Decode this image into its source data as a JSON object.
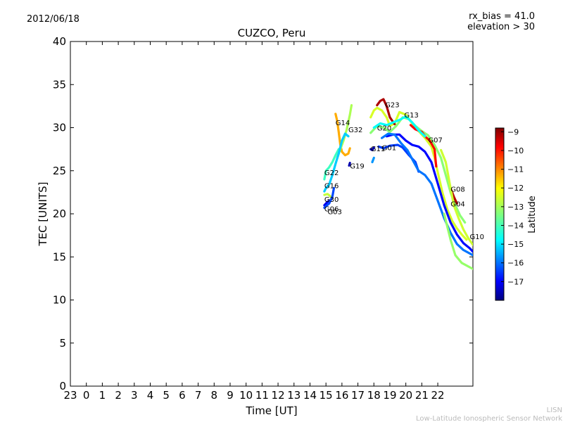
{
  "header": {
    "date": "2012/06/18",
    "bias_line": "rx_bias = 41.0",
    "elevation_line": "elevation > 30"
  },
  "footer": {
    "org": "LISN",
    "network": "Low-Latitude Ionospheric Sensor Network"
  },
  "colors": {
    "background": "#ffffff",
    "axis": "#000000",
    "footer": "#bbbbbb"
  },
  "chart_data": {
    "type": "line",
    "title": "CUZCO, Peru",
    "xlabel": "Time [UT]",
    "ylabel": "TEC [UNITS]",
    "xlim": [
      -1,
      24.2
    ],
    "ylim": [
      0,
      40
    ],
    "x_ticks": [
      -1,
      0,
      1,
      2,
      3,
      4,
      5,
      6,
      7,
      8,
      9,
      10,
      11,
      12,
      13,
      14,
      15,
      16,
      17,
      18,
      19,
      20,
      21,
      22
    ],
    "x_tick_labels": [
      "23",
      "0",
      "1",
      "2",
      "3",
      "4",
      "5",
      "6",
      "7",
      "8",
      "9",
      "10",
      "11",
      "12",
      "13",
      "14",
      "15",
      "16",
      "17",
      "18",
      "19",
      "20",
      "21",
      "22"
    ],
    "y_ticks": [
      0,
      5,
      10,
      15,
      20,
      25,
      30,
      35,
      40
    ],
    "y_tick_labels": [
      "0",
      "5",
      "10",
      "15",
      "20",
      "25",
      "30",
      "35",
      "40"
    ],
    "grid": false,
    "colorbar": {
      "label": "Latitude",
      "min": -18,
      "max": -8.8,
      "ticks": [
        -9,
        -10,
        -11,
        -12,
        -13,
        -14,
        -15,
        -16,
        -17
      ],
      "tick_labels": [
        "−9",
        "−10",
        "−11",
        "−12",
        "−13",
        "−14",
        "−15",
        "−16",
        "−17"
      ],
      "colormap": "jet"
    },
    "series": [
      {
        "name": "G14",
        "lat": -11.5,
        "points": [
          [
            15.6,
            31.6
          ],
          [
            15.7,
            30.8
          ],
          [
            15.8,
            29.5
          ],
          [
            15.9,
            28.0
          ],
          [
            16.0,
            27.2
          ],
          [
            16.2,
            26.8
          ],
          [
            16.4,
            27.0
          ],
          [
            16.5,
            27.6
          ]
        ],
        "label_at": [
          15.6,
          30.6
        ]
      },
      {
        "name": "G32",
        "lat": -13.0,
        "points": [
          [
            15.7,
            26.5
          ],
          [
            15.9,
            27.5
          ],
          [
            16.1,
            28.5
          ],
          [
            16.3,
            29.8
          ],
          [
            16.5,
            31.5
          ],
          [
            16.6,
            32.6
          ]
        ],
        "label_at": [
          16.4,
          29.8
        ]
      },
      {
        "name": "G19",
        "lat": -17.6,
        "points": [
          [
            16.45,
            25.6
          ],
          [
            16.5,
            25.9
          ]
        ],
        "label_at": [
          16.5,
          25.6
        ]
      },
      {
        "name": "G22",
        "lat": -14.0,
        "points": [
          [
            14.9,
            24.0
          ],
          [
            15.0,
            25.0
          ],
          [
            15.2,
            25.4
          ],
          [
            15.4,
            26.0
          ],
          [
            15.6,
            26.8
          ],
          [
            15.8,
            27.5
          ]
        ],
        "label_at": [
          14.9,
          24.8
        ]
      },
      {
        "name": "G16",
        "lat": -15.0,
        "points": [
          [
            14.9,
            22.6
          ],
          [
            15.0,
            23.0
          ],
          [
            15.2,
            23.4
          ],
          [
            15.4,
            24.5
          ],
          [
            15.6,
            25.8
          ],
          [
            15.8,
            27.0
          ],
          [
            16.0,
            28.5
          ],
          [
            16.2,
            29.3
          ],
          [
            16.4,
            29.0
          ]
        ],
        "label_at": [
          14.9,
          23.3
        ]
      },
      {
        "name": "G30",
        "lat": -12.8,
        "points": [
          [
            14.9,
            22.2
          ],
          [
            15.1,
            22.3
          ],
          [
            15.3,
            22.0
          ]
        ],
        "label_at": [
          14.9,
          21.7
        ]
      },
      {
        "name": "G06",
        "lat": -17.0,
        "points": [
          [
            14.9,
            21.0
          ],
          [
            15.1,
            21.4
          ],
          [
            15.3,
            21.6
          ]
        ],
        "label_at": [
          14.9,
          20.6
        ]
      },
      {
        "name": "G03",
        "lat": -16.2,
        "points": [
          [
            14.9,
            20.7
          ],
          [
            15.0,
            20.9
          ],
          [
            15.2,
            21.2
          ],
          [
            15.4,
            22.0
          ],
          [
            15.5,
            23.0
          ]
        ],
        "label_at": [
          15.1,
          20.3
        ]
      },
      {
        "name": "G11",
        "lat": -17.5,
        "points": [
          [
            17.8,
            27.5
          ],
          [
            17.9,
            27.4
          ],
          [
            18.0,
            27.7
          ]
        ],
        "label_at": [
          17.8,
          27.6
        ]
      },
      {
        "name": "G01",
        "lat": -16.3,
        "points": [
          [
            18.3,
            27.8
          ],
          [
            18.6,
            27.6
          ],
          [
            19.0,
            27.9
          ],
          [
            19.5,
            28.0
          ],
          [
            19.8,
            27.7
          ],
          [
            20.2,
            26.8
          ],
          [
            20.6,
            26.0
          ],
          [
            20.8,
            24.9
          ]
        ],
        "label_at": [
          18.5,
          27.7
        ]
      },
      {
        "name": "G20",
        "lat": -12.6,
        "points": [
          [
            17.8,
            31.2
          ],
          [
            18.0,
            32.0
          ],
          [
            18.2,
            32.3
          ],
          [
            18.5,
            32.0
          ],
          [
            18.8,
            31.2
          ],
          [
            19.0,
            30.2
          ],
          [
            19.3,
            30.5
          ],
          [
            19.6,
            31.8
          ],
          [
            20.0,
            31.5
          ],
          [
            20.4,
            30.5
          ],
          [
            20.8,
            29.6
          ],
          [
            21.2,
            28.8
          ],
          [
            21.6,
            27.8
          ],
          [
            21.8,
            26.5
          ],
          [
            22.0,
            24.8
          ],
          [
            22.3,
            22.4
          ],
          [
            22.6,
            20.5
          ],
          [
            22.9,
            19.2
          ],
          [
            23.2,
            18.3
          ],
          [
            23.5,
            17.6
          ],
          [
            23.8,
            17.0
          ]
        ],
        "label_at": [
          18.2,
          30.0
        ]
      },
      {
        "name": "G23",
        "lat": -9.2,
        "points": [
          [
            18.2,
            32.6
          ],
          [
            18.4,
            33.1
          ],
          [
            18.6,
            33.3
          ],
          [
            18.8,
            32.5
          ],
          [
            19.0,
            31.2
          ],
          [
            19.3,
            30.4
          ]
        ],
        "label_at": [
          18.7,
          32.7
        ]
      },
      {
        "name": "G13",
        "lat": -13.3,
        "points": [
          [
            17.8,
            29.4
          ],
          [
            18.2,
            30.2
          ],
          [
            18.6,
            30.0
          ],
          [
            19.0,
            29.5
          ],
          [
            19.4,
            30.2
          ],
          [
            19.8,
            31.2
          ],
          [
            20.2,
            31.0
          ],
          [
            20.6,
            30.2
          ],
          [
            21.0,
            29.6
          ],
          [
            21.4,
            29.1
          ],
          [
            21.8,
            28.0
          ],
          [
            22.2,
            26.5
          ],
          [
            22.5,
            24.5
          ],
          [
            22.8,
            22.5
          ],
          [
            23.1,
            21.0
          ],
          [
            23.4,
            19.8
          ],
          [
            23.7,
            19.0
          ]
        ],
        "label_at": [
          19.9,
          31.5
        ]
      },
      {
        "name": "G07",
        "lat": -10.0,
        "points": [
          [
            20.3,
            30.3
          ],
          [
            20.6,
            29.8
          ],
          [
            21.0,
            29.5
          ],
          [
            21.2,
            29.0
          ],
          [
            21.5,
            28.5
          ],
          [
            21.8,
            27.5
          ],
          [
            21.9,
            25.5
          ]
        ],
        "label_at": [
          21.4,
          28.6
        ]
      },
      {
        "name": "G08",
        "lat": -9.3,
        "points": [
          [
            22.8,
            23.0
          ],
          [
            23.0,
            22.0
          ],
          [
            23.2,
            21.2
          ]
        ],
        "label_at": [
          22.8,
          22.9
        ]
      },
      {
        "name": "G04",
        "lat": -12.7,
        "points": [
          [
            22.2,
            27.4
          ],
          [
            22.5,
            26.0
          ],
          [
            22.8,
            23.0
          ],
          [
            23.0,
            21.0
          ],
          [
            23.3,
            19.5
          ],
          [
            23.6,
            18.2
          ],
          [
            23.9,
            17.2
          ],
          [
            24.2,
            16.4
          ]
        ],
        "label_at": [
          22.8,
          21.2
        ]
      },
      {
        "name": "G10",
        "lat": -16.8,
        "points": [
          [
            18.8,
            29.0
          ],
          [
            19.2,
            29.2
          ],
          [
            19.6,
            29.2
          ],
          [
            20.0,
            28.5
          ],
          [
            20.4,
            28.0
          ],
          [
            20.8,
            27.8
          ],
          [
            21.2,
            27.2
          ],
          [
            21.6,
            26.0
          ],
          [
            22.0,
            23.5
          ],
          [
            22.4,
            21.0
          ],
          [
            22.8,
            19.0
          ],
          [
            23.2,
            17.6
          ],
          [
            23.6,
            16.6
          ],
          [
            24.0,
            16.0
          ],
          [
            24.2,
            15.6
          ]
        ],
        "label_at": [
          24.0,
          17.4
        ]
      },
      {
        "name": "",
        "lat": -15.8,
        "points": [
          [
            18.5,
            28.8
          ],
          [
            18.9,
            29.3
          ],
          [
            19.3,
            29.2
          ],
          [
            19.7,
            28.2
          ],
          [
            20.1,
            27.4
          ],
          [
            20.5,
            26.0
          ],
          [
            20.8,
            25.0
          ],
          [
            21.2,
            24.5
          ],
          [
            21.6,
            23.5
          ],
          [
            22.0,
            21.5
          ],
          [
            22.4,
            19.5
          ],
          [
            22.8,
            17.8
          ],
          [
            23.2,
            16.5
          ],
          [
            23.6,
            15.8
          ],
          [
            24.2,
            15.2
          ]
        ],
        "label_at": null
      },
      {
        "name": "",
        "lat": -13.2,
        "points": [
          [
            22.4,
            20.0
          ],
          [
            22.8,
            17.0
          ],
          [
            23.1,
            15.2
          ],
          [
            23.5,
            14.3
          ],
          [
            24.2,
            13.6
          ]
        ],
        "label_at": null
      },
      {
        "name": "",
        "lat": -14.5,
        "points": [
          [
            18.0,
            30.0
          ],
          [
            18.4,
            30.5
          ],
          [
            18.8,
            30.3
          ],
          [
            19.2,
            30.6
          ],
          [
            19.6,
            30.9
          ],
          [
            20.0,
            31.3
          ],
          [
            20.4,
            30.6
          ],
          [
            20.8,
            29.7
          ],
          [
            21.2,
            29.0
          ]
        ],
        "label_at": null
      },
      {
        "name": "",
        "lat": -15.5,
        "points": [
          [
            17.9,
            26.0
          ],
          [
            18.0,
            26.5
          ]
        ],
        "label_at": null
      }
    ]
  }
}
